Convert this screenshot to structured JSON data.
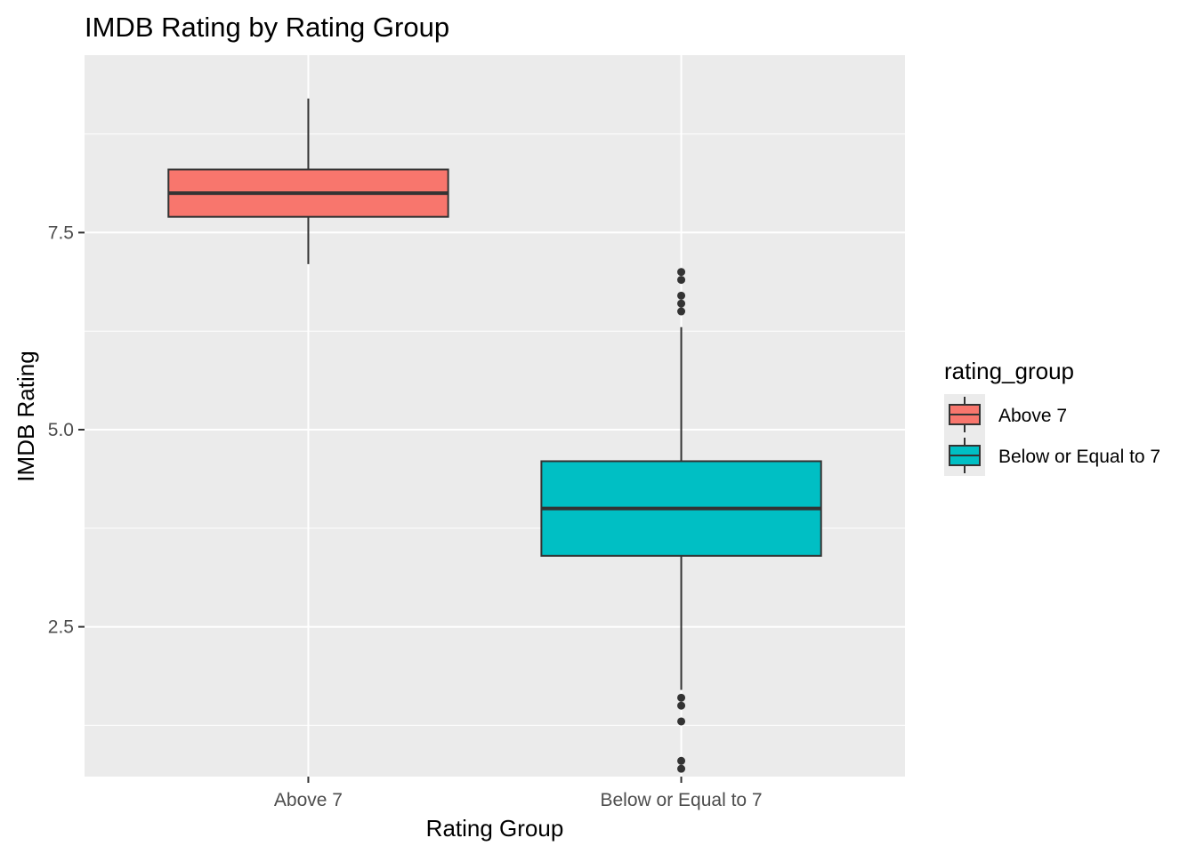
{
  "chart_data": {
    "type": "box",
    "title": "IMDB Rating by Rating Group",
    "xlabel": "Rating Group",
    "ylabel": "IMDB Rating",
    "ylim": [
      0.6,
      9.75
    ],
    "yticks": [
      2.5,
      5.0,
      7.5
    ],
    "ytick_labels": [
      "2.5",
      "5.0",
      "7.5"
    ],
    "y_minor_ticks": [
      1.25,
      3.75,
      6.25,
      8.75
    ],
    "grid": true,
    "legend": {
      "title": "rating_group",
      "placement": "right"
    },
    "categories": [
      "Above 7",
      "Below or Equal to 7"
    ],
    "series": [
      {
        "name": "Above 7",
        "color": "#F8766D",
        "whisker_low": 7.1,
        "q1": 7.7,
        "median": 8.0,
        "q3": 8.3,
        "whisker_high": 9.2,
        "outliers": []
      },
      {
        "name": "Below or Equal to 7",
        "color": "#00BFC4",
        "whisker_low": 1.7,
        "q1": 3.4,
        "median": 4.0,
        "q3": 4.6,
        "whisker_high": 6.3,
        "outliers": [
          7.0,
          6.9,
          6.7,
          6.6,
          6.5,
          1.6,
          1.5,
          1.3,
          0.8,
          0.7
        ]
      }
    ]
  }
}
